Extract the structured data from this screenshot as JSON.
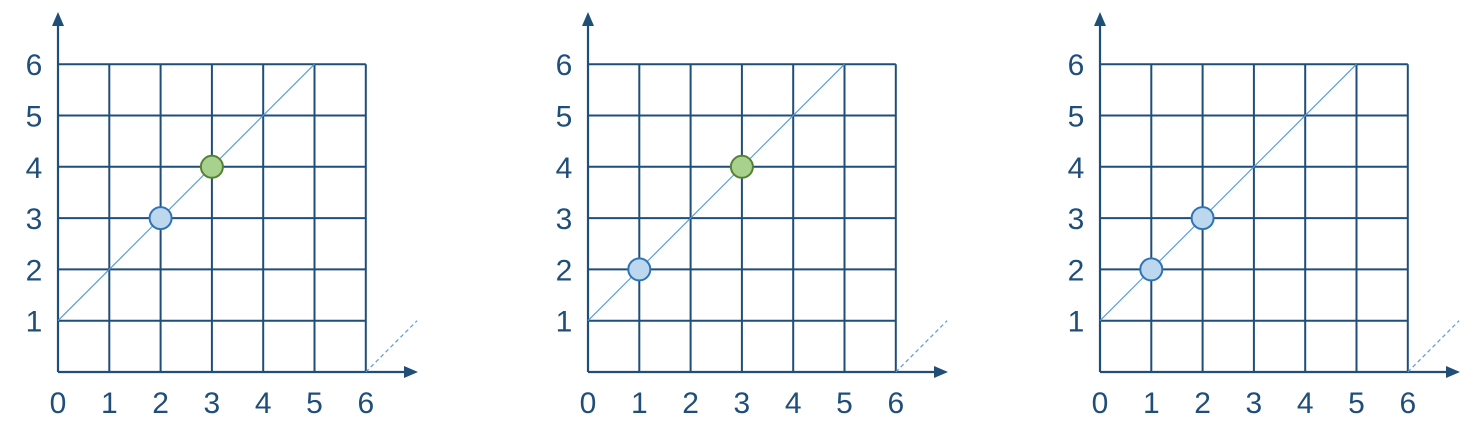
{
  "colors": {
    "grid": "#1f4e79",
    "diagonal": "#5b9bd5",
    "blue_point_fill": "#bdd7ee",
    "blue_point_stroke": "#2e75b6",
    "green_point_fill": "#a9d18e",
    "green_point_stroke": "#548235"
  },
  "panels": [
    {
      "x_ticks": [
        "0",
        "1",
        "2",
        "3",
        "4",
        "5",
        "6"
      ],
      "y_ticks": [
        "1",
        "2",
        "3",
        "4",
        "5",
        "6"
      ],
      "diagonal": {
        "from": [
          0,
          1
        ],
        "to": [
          5,
          6
        ]
      },
      "dashed_extension": {
        "from": [
          6,
          0
        ],
        "to": [
          7,
          1
        ]
      },
      "points": [
        {
          "x": 2,
          "y": 3,
          "color": "blue"
        },
        {
          "x": 3,
          "y": 4,
          "color": "green"
        }
      ]
    },
    {
      "x_ticks": [
        "0",
        "1",
        "2",
        "3",
        "4",
        "5",
        "6"
      ],
      "y_ticks": [
        "1",
        "2",
        "3",
        "4",
        "5",
        "6"
      ],
      "diagonal": {
        "from": [
          0,
          1
        ],
        "to": [
          5,
          6
        ]
      },
      "dashed_extension": {
        "from": [
          6,
          0
        ],
        "to": [
          7,
          1
        ]
      },
      "points": [
        {
          "x": 1,
          "y": 2,
          "color": "blue"
        },
        {
          "x": 3,
          "y": 4,
          "color": "green"
        }
      ]
    },
    {
      "x_ticks": [
        "0",
        "1",
        "2",
        "3",
        "4",
        "5",
        "6"
      ],
      "y_ticks": [
        "1",
        "2",
        "3",
        "4",
        "5",
        "6"
      ],
      "diagonal": {
        "from": [
          0,
          1
        ],
        "to": [
          5,
          6
        ]
      },
      "dashed_extension": {
        "from": [
          6,
          0
        ],
        "to": [
          7,
          1
        ]
      },
      "points": [
        {
          "x": 1,
          "y": 2,
          "color": "blue"
        },
        {
          "x": 2,
          "y": 3,
          "color": "blue"
        }
      ]
    }
  ]
}
